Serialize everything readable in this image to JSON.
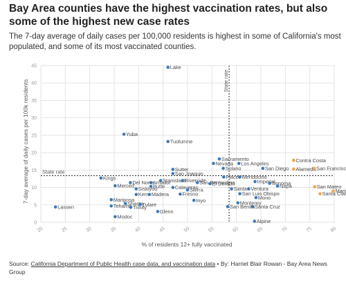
{
  "title": "Bay Area counties have the highest vaccination rates, but also some of the highest new case rates",
  "subtitle": "The 7-day average of daily cases per 100,000 residents is highest in some of California's most populated, and some of its most vaccinated counties.",
  "footer": {
    "source_prefix": "Source: ",
    "source_link": "California Department of Public Health case data, and vaccination data",
    "separator": " • ",
    "byline": "By: Harriet Blair Rowan - Bay Area News Group"
  },
  "colors": {
    "bay_area": "#f0a34a",
    "other": "#3d7ab8",
    "grid": "#e3e3e3",
    "reference": "#333333"
  },
  "chart_data": {
    "type": "scatter",
    "title": "",
    "xlabel": "% of residents 12+ fully vaccinated",
    "ylabel": "7-day average of daily cases per 100k residents",
    "xlim": [
      20,
      80
    ],
    "ylim": [
      0,
      45
    ],
    "xticks": [
      20,
      25,
      30,
      35,
      40,
      45,
      50,
      55,
      60,
      65,
      70,
      75,
      80
    ],
    "yticks": [
      0,
      5,
      10,
      15,
      20,
      25,
      30,
      35,
      40,
      45
    ],
    "grid": true,
    "reference_lines": {
      "horizontal": {
        "label": "State rate",
        "value": 13.4
      },
      "vertical": {
        "label": "State rate",
        "value": 58.5
      }
    },
    "points": [
      {
        "name": "Lake",
        "x": 46,
        "y": 44.5,
        "group": "other"
      },
      {
        "name": "Yuba",
        "x": 37,
        "y": 25.3,
        "group": "other"
      },
      {
        "name": "Tuolumne",
        "x": 46,
        "y": 23.2,
        "group": "other"
      },
      {
        "name": "Sacramento",
        "x": 56.5,
        "y": 18.2,
        "group": "other"
      },
      {
        "name": "Nevada",
        "x": 55.3,
        "y": 16.9,
        "group": "other"
      },
      {
        "name": "Los Angeles",
        "x": 60.5,
        "y": 16.9,
        "group": "other"
      },
      {
        "name": "Solano",
        "x": 57.3,
        "y": 15.5,
        "group": "other"
      },
      {
        "name": "San Diego",
        "x": 65.4,
        "y": 15.5,
        "group": "other"
      },
      {
        "name": "Sutter",
        "x": 47,
        "y": 15.2,
        "group": "other"
      },
      {
        "name": "San Joaquin",
        "x": 47,
        "y": 14.0,
        "group": "other"
      },
      {
        "name": "Placer",
        "x": 57.4,
        "y": 13.0,
        "group": "other"
      },
      {
        "name": "Mendocino",
        "x": 60.7,
        "y": 13.0,
        "group": "other"
      },
      {
        "name": "Kings",
        "x": 32.3,
        "y": 12.7,
        "group": "other"
      },
      {
        "name": "Stanislaus",
        "x": 44.5,
        "y": 12.0,
        "group": "other"
      },
      {
        "name": "Riverside",
        "x": 49,
        "y": 12.0,
        "group": "other"
      },
      {
        "name": "San Bernardino",
        "x": 52,
        "y": 11.4,
        "group": "other"
      },
      {
        "name": "Del Norte",
        "x": 38.3,
        "y": 11.4,
        "group": "other"
      },
      {
        "name": "Amador",
        "x": 42.5,
        "y": 11.4,
        "group": "other"
      },
      {
        "name": "El Dorado",
        "x": 54.6,
        "y": 11.1,
        "group": "other"
      },
      {
        "name": "Imperial",
        "x": 63.8,
        "y": 11.7,
        "group": "other"
      },
      {
        "name": "Sonoma",
        "x": 66.8,
        "y": 11.2,
        "group": "other"
      },
      {
        "name": "Napa",
        "x": 68.4,
        "y": 10.4,
        "group": "other"
      },
      {
        "name": "Merced",
        "x": 35.2,
        "y": 10.5,
        "group": "other"
      },
      {
        "name": "Butte",
        "x": 42.5,
        "y": 10.3,
        "group": "other"
      },
      {
        "name": "Calaveras",
        "x": 47,
        "y": 10.0,
        "group": "other"
      },
      {
        "name": "Siskiyou",
        "x": 39.5,
        "y": 9.6,
        "group": "other"
      },
      {
        "name": "Sierra",
        "x": 50,
        "y": 9.3,
        "group": "other"
      },
      {
        "name": "Santa",
        "x": 59,
        "y": 9.6,
        "group": "other"
      },
      {
        "name": "Ventura",
        "x": 62.5,
        "y": 9.6,
        "group": "other"
      },
      {
        "name": "Kern",
        "x": 39.5,
        "y": 8.0,
        "group": "other"
      },
      {
        "name": "Madera",
        "x": 42.2,
        "y": 8.0,
        "group": "other"
      },
      {
        "name": "Fresno",
        "x": 48.5,
        "y": 8.1,
        "group": "other"
      },
      {
        "name": "San Luis Obispo",
        "x": 60.7,
        "y": 8.2,
        "group": "other"
      },
      {
        "name": "Mono",
        "x": 64,
        "y": 7.1,
        "group": "other"
      },
      {
        "name": "Inyo",
        "x": 51.3,
        "y": 6.3,
        "group": "other"
      },
      {
        "name": "Mariposa",
        "x": 34.4,
        "y": 6.5,
        "group": "other"
      },
      {
        "name": "Shasta",
        "x": 37.3,
        "y": 5.4,
        "group": "other"
      },
      {
        "name": "Tehama",
        "x": 34.4,
        "y": 4.7,
        "group": "other"
      },
      {
        "name": "Trinity",
        "x": 38.4,
        "y": 4.3,
        "group": "other"
      },
      {
        "name": "Tulare",
        "x": 40.3,
        "y": 5.1,
        "group": "other"
      },
      {
        "name": "Monterey",
        "x": 60.3,
        "y": 5.6,
        "group": "other"
      },
      {
        "name": "San Benito",
        "x": 58.2,
        "y": 4.5,
        "group": "other"
      },
      {
        "name": "Santa Cruz",
        "x": 63.3,
        "y": 4.5,
        "group": "other"
      },
      {
        "name": "Lassen",
        "x": 23,
        "y": 4.4,
        "group": "other"
      },
      {
        "name": "Glenn",
        "x": 43.9,
        "y": 3.1,
        "group": "other"
      },
      {
        "name": "Modoc",
        "x": 35.2,
        "y": 1.6,
        "group": "other"
      },
      {
        "name": "Alpine",
        "x": 63.7,
        "y": 0.3,
        "group": "other"
      },
      {
        "name": "Contra Costa",
        "x": 71.7,
        "y": 17.8,
        "group": "bay_area"
      },
      {
        "name": "Alameda",
        "x": 71.7,
        "y": 15.3,
        "group": "bay_area"
      },
      {
        "name": "San Francisco",
        "x": 75.9,
        "y": 15.5,
        "group": "bay_area"
      },
      {
        "name": "San Mateo",
        "x": 76,
        "y": 10.2,
        "group": "bay_area"
      },
      {
        "name": "Santa Clara",
        "x": 77.1,
        "y": 8.2,
        "group": "bay_area"
      },
      {
        "name": "Marin",
        "x": 79.8,
        "y": 9.0,
        "group": "bay_area"
      }
    ]
  }
}
